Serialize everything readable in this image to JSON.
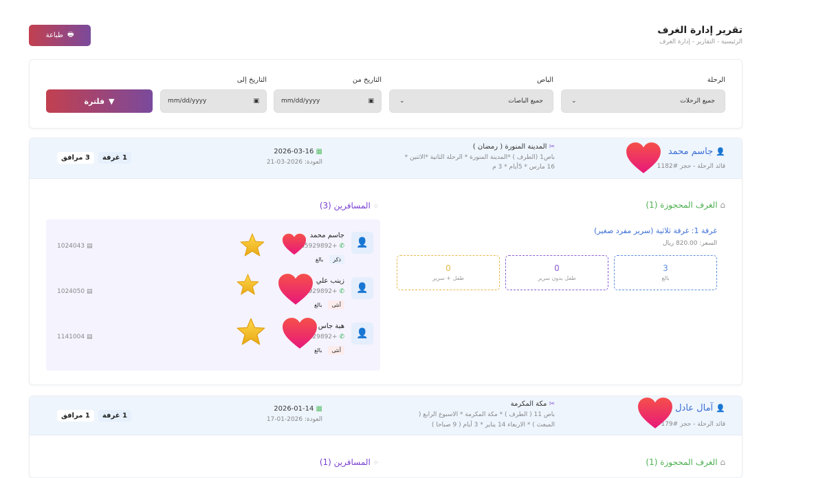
{
  "header": {
    "title": "تقرير إدارة الغرف",
    "breadcrumb": "الرئيسية  -  التقارير  -  إدارة الغرف",
    "print_label": "طباعة"
  },
  "filters": {
    "trip": {
      "label": "الرحلة",
      "value": "جميع الرحلات"
    },
    "bus": {
      "label": "الباص",
      "value": "جميع الباصات"
    },
    "date_from": {
      "label": "التاريخ من",
      "placeholder": "mm/dd/yyyy"
    },
    "date_to": {
      "label": "التاريخ إلى",
      "placeholder": "mm/dd/yyyy"
    },
    "filter_label": "فلترة"
  },
  "bookings": [
    {
      "leader_name": "جاسم محمد",
      "leader_sub": "قائد الرحلة - حجز #1182",
      "trip_title": "المدينة المنورة ( رمضان )",
      "trip_desc1": "باص1 (الطرف ) *المدينة المنورة * الرحلة الثانية *الاثنين *",
      "trip_desc2": "16 مارس * 5أيام * 3 م",
      "date": "2026-03-16",
      "return": "العودة: 2026-03-21",
      "rooms_pill": "1 غرفة",
      "companions_pill": "3 مرافق",
      "rooms_title": "الغرف المحجوزة (1)",
      "travelers_title": "المسافرين (3)",
      "room": {
        "name": "غرفة 1: غرفة ثلاثية (سرير مفرد صغير)",
        "price": "السعر: 820.00 ريال",
        "stats": [
          {
            "value": "3",
            "label": "بالغ",
            "color": "#5b8de0"
          },
          {
            "value": "0",
            "label": "طفل بدون سرير",
            "color": "#8a5cd6"
          },
          {
            "value": "0",
            "label": "طفل + سرير",
            "color": "#e8b84a"
          }
        ]
      },
      "travelers": [
        {
          "name": "جاسم محمد",
          "phone": "+965929892",
          "id": "1024043",
          "gender": "ذكر",
          "age": "بالغ"
        },
        {
          "name": "زينب علي",
          "phone": "+929892",
          "id": "1024050",
          "gender": "أنثى",
          "age": "بالغ"
        },
        {
          "name": "هبة جاس",
          "phone": "+929892",
          "id": "1141004",
          "gender": "أنثى",
          "age": "بالغ"
        }
      ]
    },
    {
      "leader_name": "آمال عادل",
      "leader_sub": "قائد الرحلة - حجز #179",
      "trip_title": "مكة المكرمة",
      "trip_desc1": "باص 11 ( الطرف ) * مكة المكرمة * الاسبوع الرابع (",
      "trip_desc2": "المبعث ) * الاربعاء 14 يناير * 3 أيام ( 9 صباحا )",
      "date": "2026-01-14",
      "return": "العودة: 2026-01-17",
      "rooms_pill": "1 غرفة",
      "companions_pill": "1 مرافق",
      "rooms_title": "الغرف المحجوزة (1)",
      "travelers_title": "المسافرين (1)"
    }
  ],
  "colors": {
    "accent_start": "#c2404f",
    "accent_end": "#7a4a9c",
    "rooms_green": "#4caf50",
    "travelers_purple": "#7a3fd0",
    "leader_blue": "#3d6fd6"
  }
}
